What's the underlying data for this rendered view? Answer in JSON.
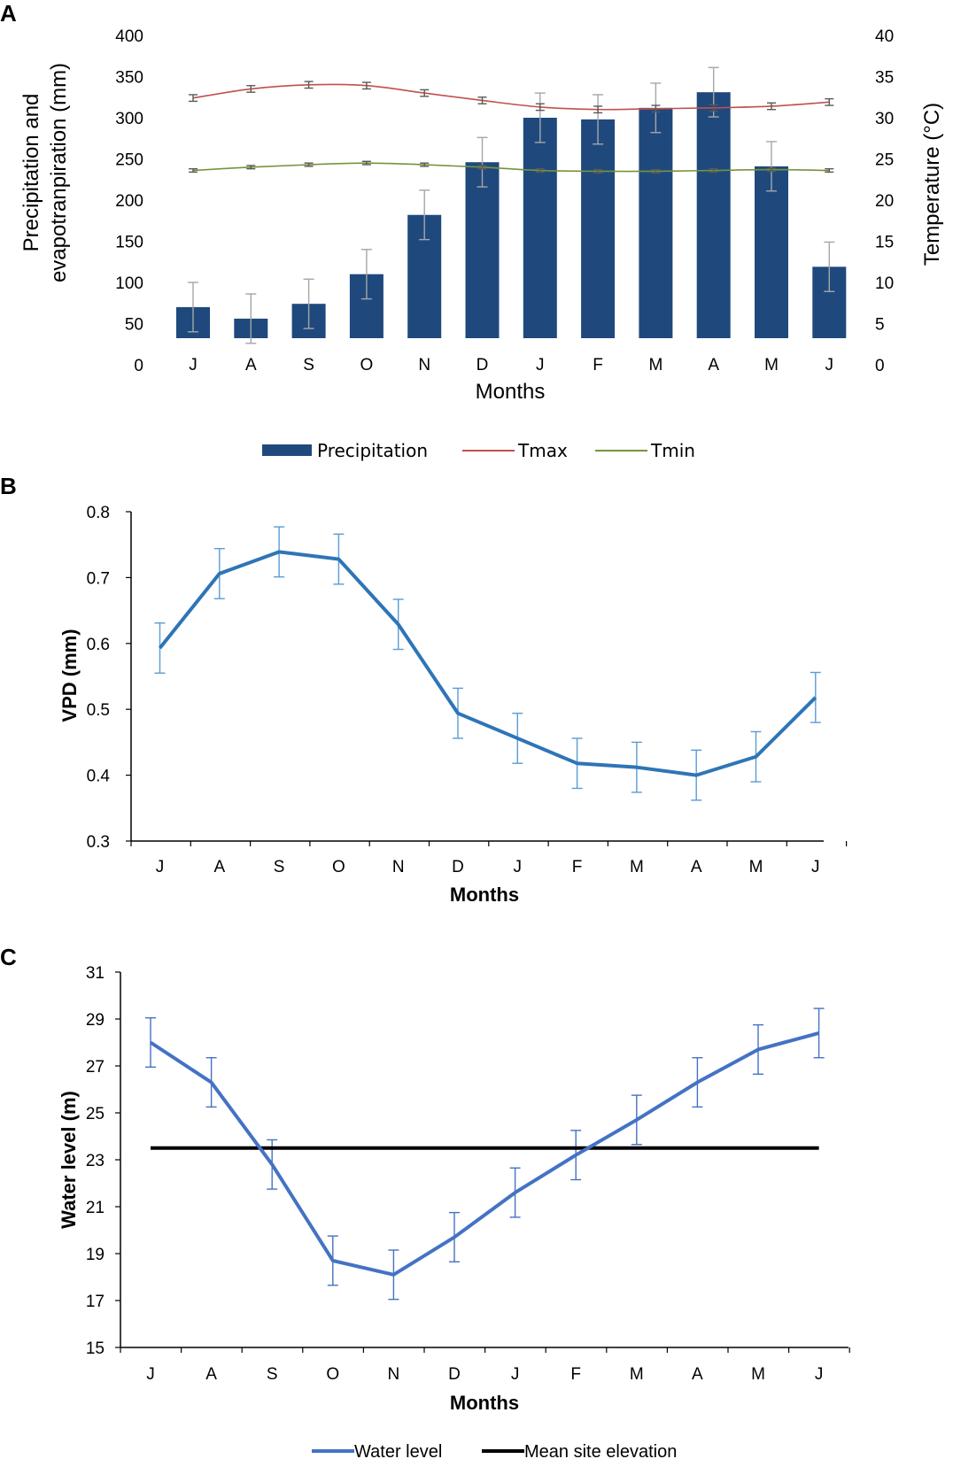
{
  "chart_data": [
    {
      "panel": "A",
      "type": "bar",
      "title": "",
      "xlabel": "Months",
      "ylabel": "Precipitation and evapotranpiration (mm)",
      "y2label": "Temperature (°C)",
      "ylim": [
        0,
        400
      ],
      "y2lim": [
        0,
        40
      ],
      "yticks": [
        "0",
        "50",
        "100",
        "150",
        "200",
        "250",
        "300",
        "350",
        "400"
      ],
      "y2ticks": [
        "0",
        "5",
        "10",
        "15",
        "20",
        "25",
        "30",
        "35",
        "40"
      ],
      "categories": [
        "J",
        "A",
        "S",
        "O",
        "N",
        "D",
        "J",
        "F",
        "M",
        "A",
        "M",
        "J"
      ],
      "legend": [
        "Precipitation",
        "Tmax",
        "Tmin"
      ],
      "series": [
        {
          "name": "Precipitation",
          "kind": "bar",
          "axis": "left",
          "color": "#1f497d",
          "values": [
            70,
            56,
            74,
            110,
            182,
            246,
            300,
            298,
            312,
            331,
            241,
            119
          ],
          "error": [
            30,
            30,
            30,
            30,
            30,
            30,
            30,
            30,
            30,
            30,
            30,
            30
          ]
        },
        {
          "name": "Tmax",
          "kind": "line",
          "axis": "right",
          "color": "#c0504d",
          "values": [
            32.4,
            33.5,
            34.0,
            33.9,
            33.0,
            32.1,
            31.3,
            31.0,
            31.1,
            31.2,
            31.4,
            31.9
          ],
          "error": [
            0.4,
            0.4,
            0.4,
            0.4,
            0.4,
            0.4,
            0.4,
            0.4,
            0.4,
            0.4,
            0.4,
            0.4
          ]
        },
        {
          "name": "Tmin",
          "kind": "line",
          "axis": "right",
          "color": "#77933c",
          "values": [
            23.6,
            24.0,
            24.3,
            24.5,
            24.3,
            24.0,
            23.6,
            23.5,
            23.5,
            23.6,
            23.7,
            23.6
          ],
          "error": [
            0.2,
            0.2,
            0.2,
            0.2,
            0.2,
            0.2,
            0.2,
            0.2,
            0.2,
            0.2,
            0.2,
            0.2
          ]
        }
      ]
    },
    {
      "panel": "B",
      "type": "line",
      "title": "",
      "xlabel": "Months",
      "ylabel": "VPD (mm)",
      "ylim": [
        0.3,
        0.8
      ],
      "yticks": [
        "0.3",
        "0.4",
        "0.5",
        "0.6",
        "0.7",
        "0.8"
      ],
      "categories": [
        "J",
        "A",
        "S",
        "O",
        "N",
        "D",
        "J",
        "F",
        "M",
        "A",
        "M",
        "J"
      ],
      "series": [
        {
          "name": "VPD",
          "color": "#2e75b6",
          "values": [
            0.593,
            0.706,
            0.739,
            0.728,
            0.629,
            0.494,
            0.456,
            0.418,
            0.412,
            0.4,
            0.428,
            0.518
          ],
          "error": [
            0.038,
            0.038,
            0.038,
            0.038,
            0.038,
            0.038,
            0.038,
            0.038,
            0.038,
            0.038,
            0.038,
            0.038
          ]
        }
      ]
    },
    {
      "panel": "C",
      "type": "line",
      "title": "",
      "xlabel": "Months",
      "ylabel": "Water level (m)",
      "ylim": [
        15,
        31
      ],
      "yticks": [
        "15",
        "17",
        "19",
        "21",
        "23",
        "25",
        "27",
        "29",
        "31"
      ],
      "categories": [
        "J",
        "A",
        "S",
        "O",
        "N",
        "D",
        "J",
        "F",
        "M",
        "A",
        "M",
        "J"
      ],
      "legend": [
        "Water level",
        "Mean site elevation"
      ],
      "series": [
        {
          "name": "Water level",
          "color": "#4472c4",
          "values": [
            28.0,
            26.3,
            22.8,
            18.7,
            18.1,
            19.7,
            21.6,
            23.2,
            24.7,
            26.3,
            27.7,
            28.4
          ],
          "error": [
            1.05,
            1.05,
            1.05,
            1.05,
            1.05,
            1.05,
            1.05,
            1.05,
            1.05,
            1.05,
            1.05,
            1.05
          ]
        },
        {
          "name": "Mean site elevation",
          "color": "#000000",
          "values": [
            23.5,
            23.5,
            23.5,
            23.5,
            23.5,
            23.5,
            23.5,
            23.5,
            23.5,
            23.5,
            23.5,
            23.5
          ]
        }
      ]
    }
  ]
}
